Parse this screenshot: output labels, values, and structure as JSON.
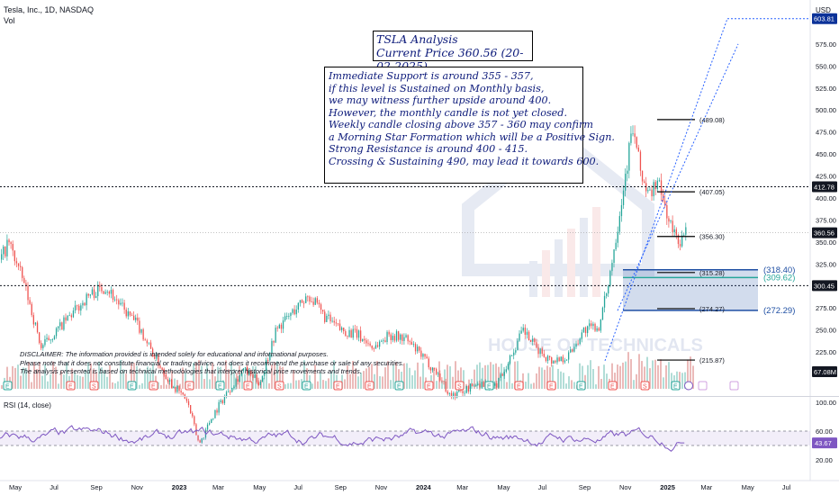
{
  "header": {
    "symbol_line": "Tesla, Inc., 1D, NASDAQ",
    "volume_label": "Vol"
  },
  "currency": "USD",
  "title_box": [
    "TSLA Analysis",
    "Current Price 360.56 (20-02-2025)"
  ],
  "note_box": [
    "Immediate Support is around 355 - 357,",
    "if this level is Sustained on Monthly basis,",
    "we may witness further upside around 400.",
    "However, the monthly candle is not yet closed.",
    "Weekly candle closing above 357 - 360 may confirm",
    "a Morning Star Formation which will be a Positive Sign.",
    "Strong Resistance is around 400 - 415.",
    "Crossing & Sustaining 490, may lead it towards 600."
  ],
  "disclaimer": [
    "DISCLAIMER: The information provided is intended solely for educational and informational purposes.",
    "Please note that it does not constitute financial or trading advice, nor does it recommend the purchase or sale of any securities.",
    "The analysis presented is based on technical methodologies that interpret historical price movements and trends."
  ],
  "watermark": "HOUSE OF TECHNICALS",
  "colors": {
    "up": "#26a69a",
    "down": "#ef5350",
    "rsi": "#7e57c2",
    "zone_text": "#1f4fa3",
    "dotted": "#2962ff"
  },
  "chart_data": {
    "type": "candlestick",
    "price_axis": {
      "ticks": [
        575,
        550,
        525,
        500,
        475,
        450,
        425,
        400,
        375,
        350,
        325,
        275,
        250,
        225,
        200
      ],
      "ylim": [
        175,
        625
      ],
      "tags": [
        {
          "value": 603.81,
          "label": "603.81"
        },
        {
          "value": 412.78,
          "label": "412.78"
        },
        {
          "value": 360.56,
          "label": "360.56"
        },
        {
          "value": 300.45,
          "label": "300.45"
        }
      ],
      "volume_tag": "67.08M"
    },
    "x_axis": {
      "labels": [
        "May",
        "Jul",
        "Sep",
        "Nov",
        "2023",
        "Mar",
        "May",
        "Jul",
        "Sep",
        "Nov",
        "2024",
        "Mar",
        "May",
        "Jul",
        "Sep",
        "Nov",
        "2025",
        "Mar",
        "May",
        "Jul"
      ]
    },
    "levels": [
      {
        "value": 489.08,
        "label": "(489.08)"
      },
      {
        "value": 407.05,
        "label": "(407.05)"
      },
      {
        "value": 356.3,
        "label": "(356.30)"
      },
      {
        "value": 315.28,
        "label": "(315.28)"
      },
      {
        "value": 274.27,
        "label": "(274.27)"
      },
      {
        "value": 215.87,
        "label": "(215.87)"
      }
    ],
    "zone": {
      "top": 318.4,
      "mid": 309.62,
      "bottom": 272.29,
      "labels": [
        "(318.40)",
        "(309.62)",
        "(272.29)"
      ]
    },
    "dotted_lines": [
      412.78,
      300.45,
      360.56
    ],
    "target": 603.81,
    "rsi": {
      "label": "RSI (14, close)",
      "ticks": [
        100.0,
        60.0,
        20.0
      ],
      "upper": 60.0,
      "lower": 40.0,
      "last": 43.67,
      "last_label": "43.67",
      "ylim": [
        0,
        100
      ]
    },
    "price_path": [
      [
        0.0,
        330
      ],
      [
        0.01,
        350
      ],
      [
        0.03,
        300
      ],
      [
        0.05,
        230
      ],
      [
        0.07,
        250
      ],
      [
        0.09,
        270
      ],
      [
        0.11,
        290
      ],
      [
        0.13,
        300
      ],
      [
        0.15,
        275
      ],
      [
        0.17,
        255
      ],
      [
        0.19,
        220
      ],
      [
        0.21,
        190
      ],
      [
        0.23,
        170
      ],
      [
        0.245,
        120
      ],
      [
        0.26,
        150
      ],
      [
        0.28,
        180
      ],
      [
        0.3,
        205
      ],
      [
        0.32,
        190
      ],
      [
        0.34,
        250
      ],
      [
        0.36,
        270
      ],
      [
        0.38,
        290
      ],
      [
        0.4,
        265
      ],
      [
        0.42,
        250
      ],
      [
        0.44,
        245
      ],
      [
        0.46,
        230
      ],
      [
        0.48,
        245
      ],
      [
        0.5,
        240
      ],
      [
        0.52,
        220
      ],
      [
        0.54,
        200
      ],
      [
        0.555,
        175
      ],
      [
        0.57,
        180
      ],
      [
        0.59,
        190
      ],
      [
        0.61,
        185
      ],
      [
        0.63,
        220
      ],
      [
        0.645,
        250
      ],
      [
        0.66,
        230
      ],
      [
        0.68,
        215
      ],
      [
        0.7,
        220
      ],
      [
        0.72,
        250
      ],
      [
        0.74,
        255
      ],
      [
        0.755,
        330
      ],
      [
        0.77,
        420
      ],
      [
        0.78,
        480
      ],
      [
        0.79,
        430
      ],
      [
        0.8,
        400
      ],
      [
        0.81,
        420
      ],
      [
        0.82,
        390
      ],
      [
        0.83,
        360
      ],
      [
        0.84,
        350
      ],
      [
        0.845,
        360.56
      ]
    ]
  }
}
